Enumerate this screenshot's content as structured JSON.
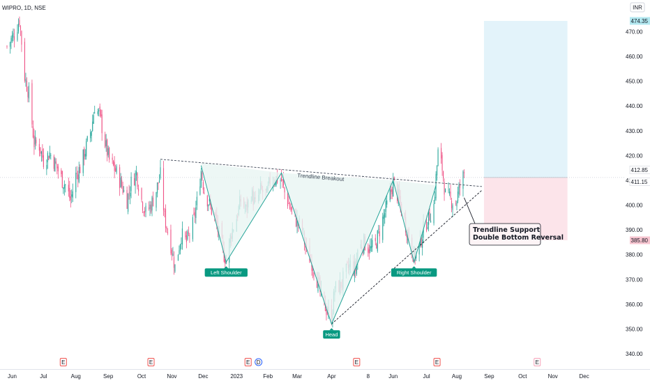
{
  "header": {
    "symbol_line": "WIPRO, 1D, NSE",
    "currency": "INR"
  },
  "colors": {
    "up": "#26a69a",
    "down": "#ef5285",
    "label_green": "#089981",
    "target_fill": "#e3f3fa",
    "stop_fill": "#fce4ea",
    "target_tag": "#b2e8f0",
    "stop_tag": "#f7c5d0",
    "earnings_red": "#ef5350",
    "dividend_blue": "#2962ff",
    "earnings_green": "#089981"
  },
  "chart_data": {
    "type": "candlestick",
    "title": "WIPRO, 1D, NSE",
    "ylim": [
      336,
      480
    ],
    "y_ticks": [
      340,
      350,
      360,
      370,
      380,
      390,
      400,
      410,
      420,
      430,
      440,
      450,
      460,
      470
    ],
    "y_tick_labels": [
      "340.00",
      "350.00",
      "360.00",
      "370.00",
      "380.00",
      "390.00",
      "400.00",
      "410.00",
      "420.00",
      "430.00",
      "440.00",
      "450.00",
      "460.00",
      "470.00"
    ],
    "x_tick_labels": [
      "Jun",
      "Jul",
      "Aug",
      "Sep",
      "Oct",
      "Nov",
      "Dec",
      "2023",
      "Feb",
      "Mar",
      "Apr",
      "8",
      "Jun",
      "Jul",
      "Aug",
      "Sep",
      "Oct",
      "Nov",
      "Dec"
    ],
    "price_tags": [
      {
        "value": "474.35",
        "kind": "target"
      },
      {
        "value": "412.85",
        "kind": "current"
      },
      {
        "value": "411.15",
        "kind": "entry"
      },
      {
        "value": "385.80",
        "kind": "stop"
      }
    ],
    "levels": {
      "target": 474.35,
      "entry": 411.15,
      "stop": 385.8,
      "last": 412.85
    },
    "pattern_points": [
      {
        "date": "2022-11-29",
        "price": 416
      },
      {
        "date": "2022-12-23",
        "price": 377
      },
      {
        "date": "2023-02-14",
        "price": 413
      },
      {
        "date": "2023-04-03",
        "price": 352
      },
      {
        "date": "2023-06-01",
        "price": 410
      },
      {
        "date": "2023-06-21",
        "price": 377
      },
      {
        "date": "2023-07-12",
        "price": 408
      }
    ],
    "neckline": {
      "from": {
        "date": "2022-10-21",
        "price": 418.5
      },
      "to": {
        "date": "2023-08-25",
        "price": 407.5
      },
      "label": "Trendline Breakout"
    },
    "support_line": {
      "from": {
        "date": "2023-04-03",
        "price": 352
      },
      "to": {
        "date": "2023-08-25",
        "price": 406
      }
    },
    "pattern_labels": [
      {
        "text": "Left Shoulder",
        "date": "2022-12-23",
        "price": 377
      },
      {
        "text": "Head",
        "date": "2023-04-03",
        "price": 352
      },
      {
        "text": "Right Shoulder",
        "date": "2023-06-21",
        "price": 377
      }
    ],
    "note": {
      "lines": [
        "Trendline Support",
        "Double Bottom Reversal"
      ]
    },
    "events": [
      {
        "type": "E",
        "kind": "earnings",
        "date": "2022-07-20"
      },
      {
        "type": "E",
        "kind": "earnings",
        "date": "2022-10-12"
      },
      {
        "type": "E",
        "kind": "earnings",
        "date": "2023-01-13"
      },
      {
        "type": "D",
        "kind": "dividend",
        "date": "2023-01-23"
      },
      {
        "type": "E",
        "kind": "earnings",
        "date": "2023-04-27"
      },
      {
        "type": "E",
        "kind": "earnings",
        "date": "2023-07-13"
      },
      {
        "type": "E",
        "kind": "upcoming",
        "date": "2023-10-17"
      }
    ],
    "closes": [
      [
        "2022-05-27",
        464
      ],
      [
        "2022-06-03",
        469
      ],
      [
        "2022-06-08",
        475
      ],
      [
        "2022-06-13",
        452
      ],
      [
        "2022-06-17",
        445
      ],
      [
        "2022-06-22",
        425
      ],
      [
        "2022-06-27",
        424
      ],
      [
        "2022-07-01",
        418
      ],
      [
        "2022-07-07",
        421
      ],
      [
        "2022-07-13",
        416
      ],
      [
        "2022-07-19",
        410
      ],
      [
        "2022-07-22",
        408
      ],
      [
        "2022-07-27",
        402
      ],
      [
        "2022-08-01",
        412
      ],
      [
        "2022-08-05",
        415
      ],
      [
        "2022-08-10",
        422
      ],
      [
        "2022-08-16",
        431
      ],
      [
        "2022-08-19",
        440
      ],
      [
        "2022-08-24",
        436
      ],
      [
        "2022-08-29",
        425
      ],
      [
        "2022-09-02",
        418
      ],
      [
        "2022-09-08",
        414
      ],
      [
        "2022-09-13",
        409
      ],
      [
        "2022-09-19",
        402
      ],
      [
        "2022-09-23",
        409
      ],
      [
        "2022-09-28",
        413
      ],
      [
        "2022-10-03",
        402
      ],
      [
        "2022-10-07",
        397
      ],
      [
        "2022-10-12",
        400
      ],
      [
        "2022-10-17",
        406
      ],
      [
        "2022-10-21",
        412
      ],
      [
        "2022-10-25",
        395
      ],
      [
        "2022-10-31",
        384
      ],
      [
        "2022-11-04",
        375
      ],
      [
        "2022-11-10",
        388
      ],
      [
        "2022-11-15",
        385
      ],
      [
        "2022-11-21",
        392
      ],
      [
        "2022-11-25",
        401
      ],
      [
        "2022-11-29",
        414
      ],
      [
        "2022-12-02",
        406
      ],
      [
        "2022-12-08",
        399
      ],
      [
        "2022-12-13",
        394
      ],
      [
        "2022-12-16",
        388
      ],
      [
        "2022-12-21",
        380
      ],
      [
        "2022-12-23",
        378
      ],
      [
        "2022-12-28",
        389
      ],
      [
        "2023-01-02",
        395
      ],
      [
        "2023-01-06",
        402
      ],
      [
        "2023-01-11",
        398
      ],
      [
        "2023-01-16",
        405
      ],
      [
        "2023-01-20",
        400
      ],
      [
        "2023-01-25",
        406
      ],
      [
        "2023-01-31",
        404
      ],
      [
        "2023-02-03",
        410
      ],
      [
        "2023-02-08",
        411
      ],
      [
        "2023-02-14",
        410
      ],
      [
        "2023-02-17",
        405
      ],
      [
        "2023-02-23",
        398
      ],
      [
        "2023-02-28",
        394
      ],
      [
        "2023-03-06",
        390
      ],
      [
        "2023-03-10",
        381
      ],
      [
        "2023-03-15",
        377
      ],
      [
        "2023-03-20",
        370
      ],
      [
        "2023-03-24",
        363
      ],
      [
        "2023-03-29",
        358
      ],
      [
        "2023-04-03",
        355
      ],
      [
        "2023-04-06",
        366
      ],
      [
        "2023-04-12",
        368
      ],
      [
        "2023-04-17",
        373
      ],
      [
        "2023-04-21",
        376
      ],
      [
        "2023-04-26",
        374
      ],
      [
        "2023-04-28",
        382
      ],
      [
        "2023-05-04",
        385
      ],
      [
        "2023-05-10",
        382
      ],
      [
        "2023-05-15",
        384
      ],
      [
        "2023-05-19",
        390
      ],
      [
        "2023-05-24",
        397
      ],
      [
        "2023-05-29",
        404
      ],
      [
        "2023-06-01",
        409
      ],
      [
        "2023-06-06",
        403
      ],
      [
        "2023-06-09",
        398
      ],
      [
        "2023-06-13",
        392
      ],
      [
        "2023-06-16",
        387
      ],
      [
        "2023-06-21",
        379
      ],
      [
        "2023-06-26",
        383
      ],
      [
        "2023-06-30",
        390
      ],
      [
        "2023-07-05",
        395
      ],
      [
        "2023-07-10",
        400
      ],
      [
        "2023-07-12",
        411
      ],
      [
        "2023-07-14",
        421
      ],
      [
        "2023-07-18",
        415
      ],
      [
        "2023-07-21",
        404
      ],
      [
        "2023-07-26",
        402
      ],
      [
        "2023-07-31",
        401
      ],
      [
        "2023-08-03",
        406
      ],
      [
        "2023-08-08",
        412.85
      ]
    ]
  }
}
